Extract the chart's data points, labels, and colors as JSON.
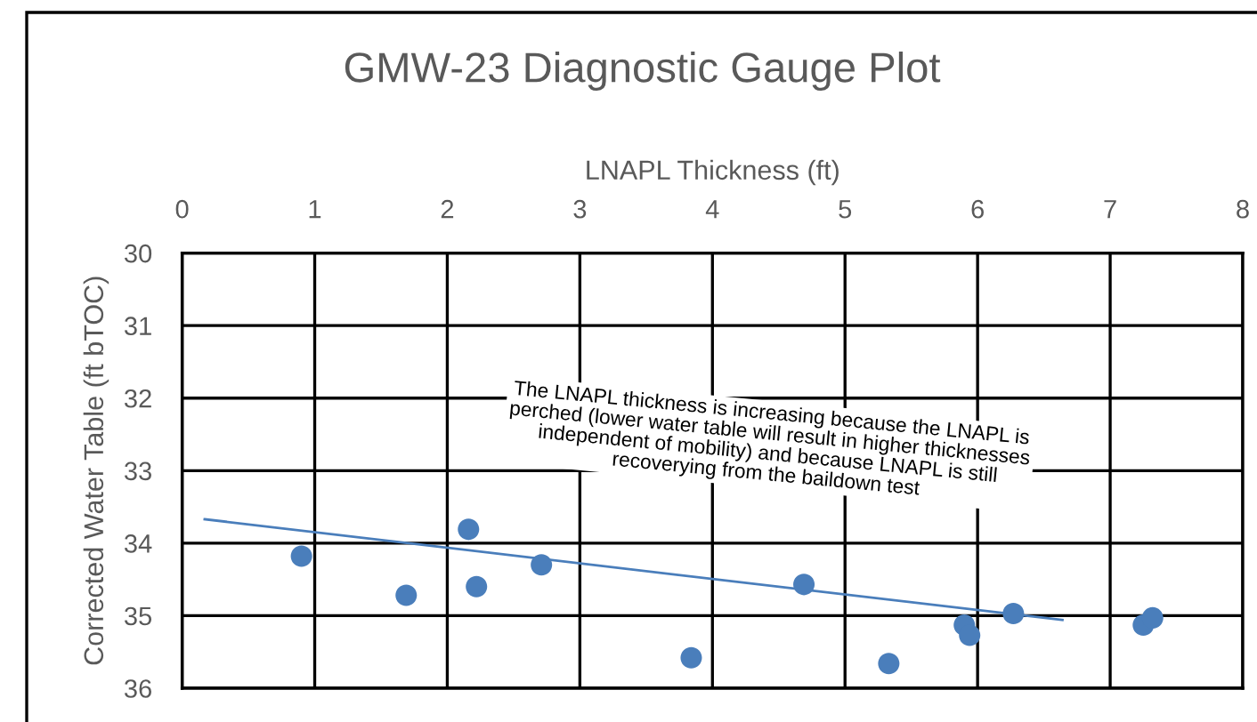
{
  "chart_data": {
    "type": "scatter",
    "title": "GMW-23 Diagnostic Gauge Plot",
    "xlabel": "LNAPL Thickness (ft)",
    "ylabel": "Corrected Water Table (ft bTOC)",
    "xlim": [
      0,
      8
    ],
    "xticks": [
      0,
      1,
      2,
      3,
      4,
      5,
      6,
      7,
      8
    ],
    "ylim": [
      36,
      30
    ],
    "yticks": [
      30,
      31,
      32,
      33,
      34,
      35,
      36
    ],
    "grid": true,
    "legend": false,
    "marker": "circle",
    "series": [
      {
        "color": "#4a7ebb",
        "x": [
          0.9,
          1.69,
          2.16,
          2.22,
          2.71,
          3.84,
          4.69,
          5.33,
          5.9,
          5.94,
          6.27,
          7.25,
          7.32
        ],
        "values": [
          34.18,
          34.72,
          33.81,
          34.6,
          34.3,
          35.58,
          34.57,
          35.66,
          35.13,
          35.27,
          34.97,
          35.13,
          35.03
        ]
      },
      {
        "type": "line",
        "color": "#4a7ebb",
        "marker": "none",
        "x": [
          0.17,
          6.64
        ],
        "values": [
          33.67,
          35.06
        ]
      }
    ],
    "annotations": [
      "The LNAPL thickness is increasing because the LNAPL is\nperched (lower water table will result in higher thicknesses\nindependent of mobility) and because LNAPL is still\nrecoverying from the baildown test"
    ]
  }
}
